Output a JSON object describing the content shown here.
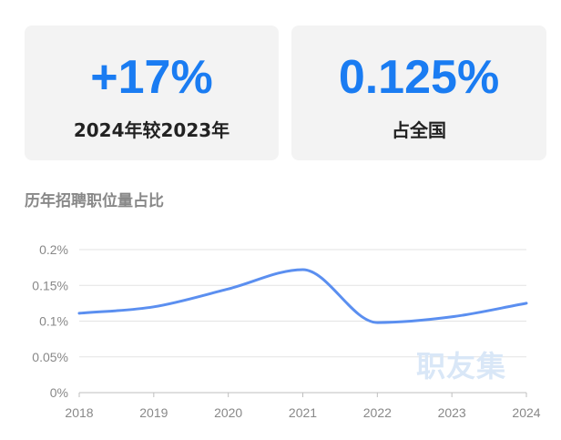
{
  "colors": {
    "accent": "#1a7cf2",
    "line": "#5b8ff0",
    "muted": "#888888",
    "watermark": "#d9e7f7"
  },
  "stats": [
    {
      "value": "+17%",
      "label": "2024年较2023年"
    },
    {
      "value": "0.125%",
      "label": "占全国"
    }
  ],
  "section": {
    "title": "历年招聘职位量占比"
  },
  "watermark": "职友集",
  "chart_data": {
    "type": "line",
    "title": "",
    "xlabel": "",
    "ylabel": "",
    "categories": [
      "2018",
      "2019",
      "2020",
      "2021",
      "2022",
      "2023",
      "2024"
    ],
    "y_tick_values": [
      0,
      0.05,
      0.1,
      0.15,
      0.2
    ],
    "y_tick_labels": [
      "0%",
      "0.05%",
      "0.1%",
      "0.15%",
      "0.2%"
    ],
    "ylim": [
      0,
      0.2
    ],
    "series": [
      {
        "values": [
          0.111,
          0.12,
          0.145,
          0.172,
          0.098,
          0.106,
          0.125
        ]
      }
    ],
    "grid": true,
    "legend": "none",
    "smooth": true
  }
}
